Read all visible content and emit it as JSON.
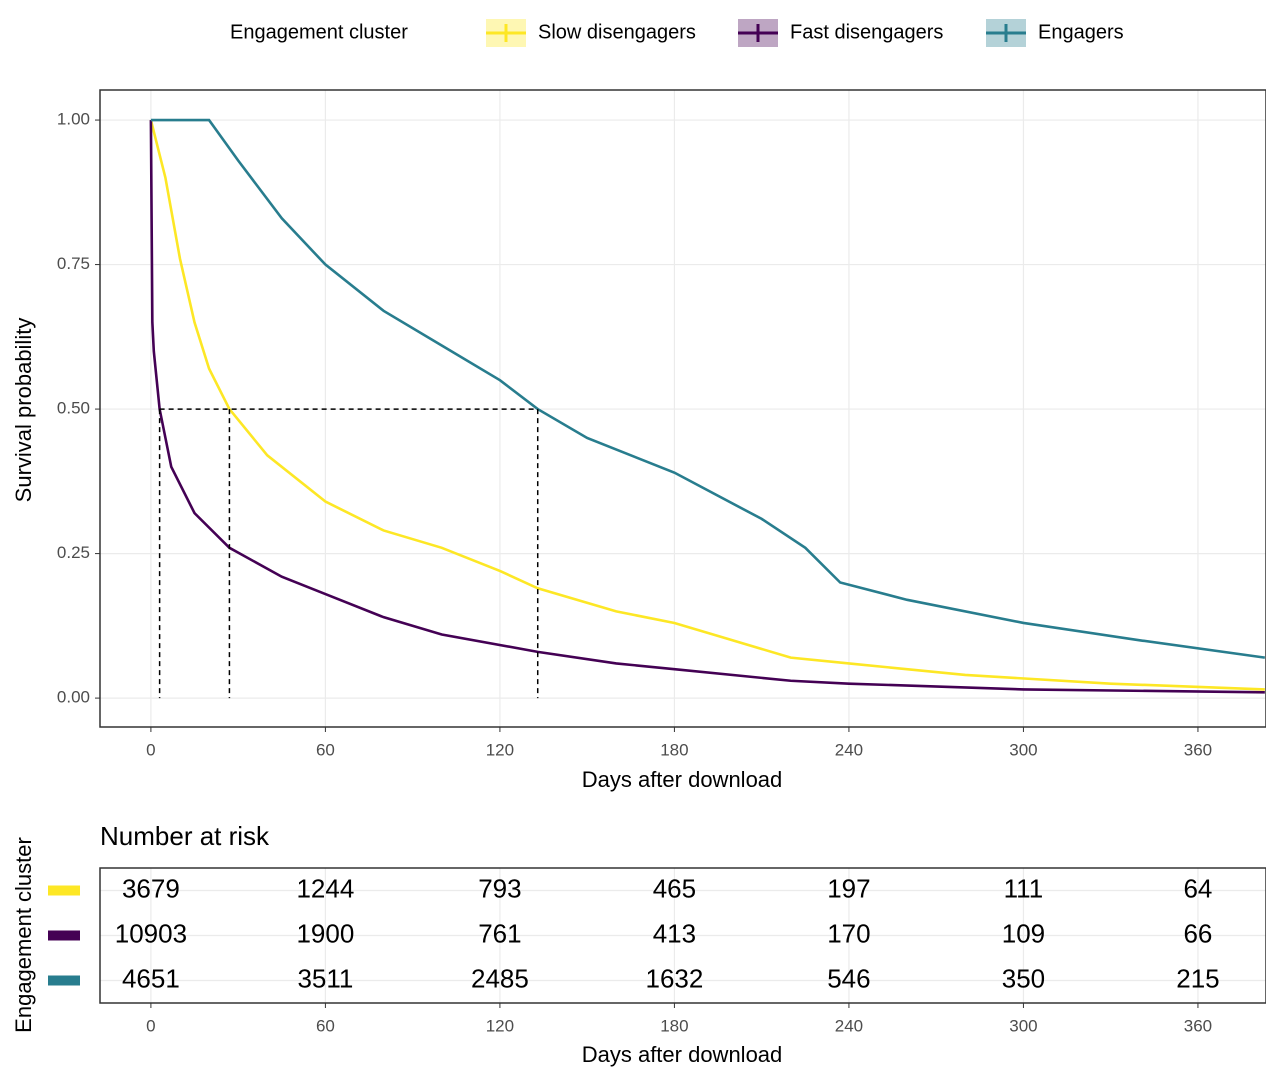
{
  "chart_data": [
    {
      "type": "line",
      "legend_title": "Engagement cluster",
      "legend_position": "top",
      "xlabel": "Days after download",
      "ylabel": "Survival probability",
      "xlim": [
        -17.5,
        383.4
      ],
      "ylim": [
        -0.05,
        1.052
      ],
      "xticks": [
        0,
        60,
        120,
        180,
        240,
        300,
        360
      ],
      "yticks": [
        {
          "value": 0,
          "label": "0.00"
        },
        {
          "value": 0.25,
          "label": "0.25"
        },
        {
          "value": 0.5,
          "label": "0.50"
        },
        {
          "value": 0.75,
          "label": "0.75"
        },
        {
          "value": 1,
          "label": "1.00"
        }
      ],
      "grid": true,
      "median_y": 0.5,
      "median_x": [
        3,
        27,
        133
      ],
      "series": [
        {
          "name": "Slow disengagers",
          "color": "#FDE725",
          "x": [
            0,
            5,
            10,
            15,
            20,
            27,
            40,
            60,
            80,
            100,
            120,
            133,
            160,
            180,
            220,
            240,
            280,
            330,
            383
          ],
          "values": [
            1,
            0.9,
            0.76,
            0.65,
            0.57,
            0.5,
            0.42,
            0.34,
            0.29,
            0.26,
            0.22,
            0.19,
            0.15,
            0.13,
            0.07,
            0.06,
            0.04,
            0.025,
            0.015
          ]
        },
        {
          "name": "Fast disengagers",
          "color": "#440154",
          "x": [
            0,
            0.5,
            1,
            3,
            7,
            15,
            27,
            45,
            60,
            80,
            100,
            133,
            160,
            180,
            220,
            240,
            300,
            383
          ],
          "values": [
            1,
            0.65,
            0.6,
            0.5,
            0.4,
            0.32,
            0.26,
            0.21,
            0.18,
            0.14,
            0.11,
            0.08,
            0.06,
            0.05,
            0.03,
            0.025,
            0.015,
            0.01
          ]
        },
        {
          "name": "Engagers",
          "color": "#287D8E",
          "x": [
            0,
            20,
            30,
            45,
            60,
            80,
            100,
            120,
            133,
            150,
            180,
            210,
            225,
            237,
            260,
            300,
            340,
            383
          ],
          "values": [
            1,
            1,
            0.93,
            0.83,
            0.75,
            0.67,
            0.61,
            0.55,
            0.5,
            0.45,
            0.39,
            0.31,
            0.26,
            0.2,
            0.17,
            0.13,
            0.1,
            0.07
          ]
        }
      ]
    },
    {
      "type": "risk-table",
      "title": "Number at risk",
      "xlabel": "Days after download",
      "ylabel": "Engagement cluster",
      "xlim": [
        -17.5,
        383.4
      ],
      "xticks": [
        0,
        60,
        120,
        180,
        240,
        300,
        360
      ],
      "series": [
        {
          "color": "#FDE725",
          "values": [
            3679,
            1244,
            793,
            465,
            197,
            111,
            64
          ]
        },
        {
          "color": "#440154",
          "values": [
            10903,
            1900,
            761,
            413,
            170,
            109,
            66
          ]
        },
        {
          "color": "#287D8E",
          "values": [
            4651,
            3511,
            2485,
            1632,
            546,
            350,
            215
          ]
        }
      ]
    }
  ]
}
